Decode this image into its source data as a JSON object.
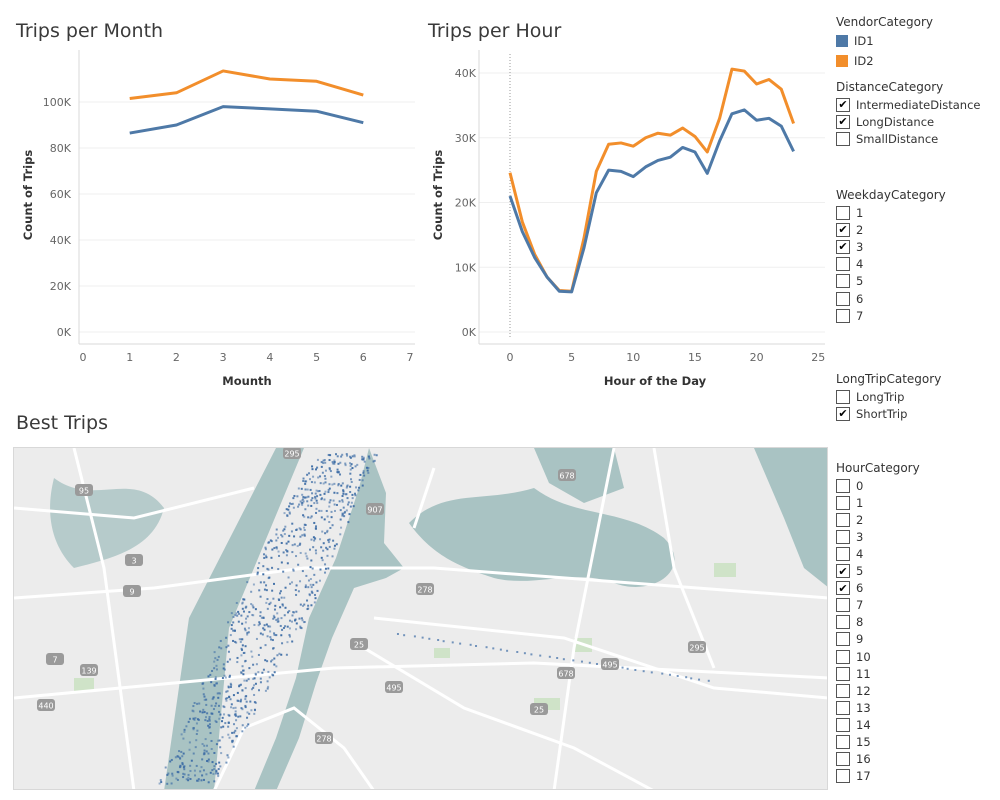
{
  "charts": {
    "month": {
      "title": "Trips per Month",
      "xlabel": "Mounth",
      "ylabel": "Count of Trips",
      "xticks": [
        "0",
        "1",
        "2",
        "3",
        "4",
        "5",
        "6",
        "7"
      ],
      "yticks": [
        "0K",
        "20K",
        "40K",
        "60K",
        "80K",
        "100K"
      ]
    },
    "hour": {
      "title": "Trips per Hour",
      "xlabel": "Hour of the Day",
      "ylabel": "Count of Trips",
      "xticks": [
        "0",
        "5",
        "10",
        "15",
        "20",
        "25"
      ],
      "yticks": [
        "0K",
        "10K",
        "20K",
        "30K",
        "40K"
      ]
    },
    "map": {
      "title": "Best Trips"
    }
  },
  "chart_data": [
    {
      "type": "line",
      "title": "Trips per Month",
      "xlabel": "Mounth",
      "ylabel": "Count of Trips",
      "xlim": [
        0,
        7
      ],
      "ylim": [
        0,
        115000
      ],
      "x": [
        1,
        2,
        3,
        4,
        5,
        6
      ],
      "series": [
        {
          "name": "ID1",
          "color": "#4e79a7",
          "values": [
            86500,
            90000,
            98000,
            97000,
            96000,
            91000
          ]
        },
        {
          "name": "ID2",
          "color": "#f28e2b",
          "values": [
            101500,
            104000,
            113500,
            110000,
            109000,
            103000
          ]
        }
      ]
    },
    {
      "type": "line",
      "title": "Trips per Hour",
      "xlabel": "Hour of the Day",
      "ylabel": "Count of Trips",
      "xlim": [
        -2,
        25
      ],
      "ylim": [
        0,
        41000
      ],
      "x": [
        0,
        1,
        2,
        3,
        4,
        5,
        6,
        7,
        8,
        9,
        10,
        11,
        12,
        13,
        14,
        15,
        16,
        17,
        18,
        19,
        20,
        21,
        22,
        23
      ],
      "series": [
        {
          "name": "ID1",
          "color": "#4e79a7",
          "values": [
            21000,
            15500,
            11500,
            8500,
            6300,
            6200,
            13000,
            21500,
            25000,
            24800,
            24000,
            25500,
            26500,
            27000,
            28500,
            27800,
            24500,
            29500,
            33700,
            34300,
            32700,
            33000,
            31800,
            27900
          ]
        },
        {
          "name": "ID2",
          "color": "#f28e2b",
          "values": [
            24600,
            17000,
            12000,
            8500,
            6400,
            6300,
            14500,
            24800,
            29000,
            29200,
            28700,
            30000,
            30700,
            30400,
            31500,
            30200,
            27800,
            33000,
            40600,
            40300,
            38300,
            39000,
            37500,
            32200
          ]
        }
      ]
    }
  ],
  "filters": {
    "vendor": {
      "title": "VendorCategory",
      "items": [
        {
          "label": "ID1",
          "color": "#4e79a7"
        },
        {
          "label": "ID2",
          "color": "#f28e2b"
        }
      ]
    },
    "distance": {
      "title": "DistanceCategory",
      "items": [
        {
          "label": "IntermediateDistance",
          "checked": true
        },
        {
          "label": "LongDistance",
          "checked": true
        },
        {
          "label": "SmallDistance",
          "checked": false
        }
      ]
    },
    "weekday": {
      "title": "WeekdayCategory",
      "items": [
        {
          "label": "1",
          "checked": false
        },
        {
          "label": "2",
          "checked": true
        },
        {
          "label": "3",
          "checked": true
        },
        {
          "label": "4",
          "checked": false
        },
        {
          "label": "5",
          "checked": false
        },
        {
          "label": "6",
          "checked": false
        },
        {
          "label": "7",
          "checked": false
        }
      ]
    },
    "longtrip": {
      "title": "LongTripCategory",
      "items": [
        {
          "label": "LongTrip",
          "checked": false
        },
        {
          "label": "ShortTrip",
          "checked": true
        }
      ]
    },
    "hour": {
      "title": "HourCategory",
      "items": [
        {
          "label": "0",
          "checked": false
        },
        {
          "label": "1",
          "checked": false
        },
        {
          "label": "2",
          "checked": false
        },
        {
          "label": "3",
          "checked": false
        },
        {
          "label": "4",
          "checked": false
        },
        {
          "label": "5",
          "checked": true
        },
        {
          "label": "6",
          "checked": true
        },
        {
          "label": "7",
          "checked": false
        },
        {
          "label": "8",
          "checked": false
        },
        {
          "label": "9",
          "checked": false
        },
        {
          "label": "10",
          "checked": false
        },
        {
          "label": "11",
          "checked": false
        },
        {
          "label": "12",
          "checked": false
        },
        {
          "label": "13",
          "checked": false
        },
        {
          "label": "14",
          "checked": false
        },
        {
          "label": "15",
          "checked": false
        },
        {
          "label": "16",
          "checked": false
        },
        {
          "label": "17",
          "checked": false
        }
      ]
    }
  },
  "map": {
    "shields": [
      "295",
      "678",
      "95",
      "907",
      "3",
      "9",
      "278",
      "25",
      "139",
      "7",
      "440",
      "495",
      "678",
      "295",
      "25",
      "278",
      "495"
    ]
  }
}
